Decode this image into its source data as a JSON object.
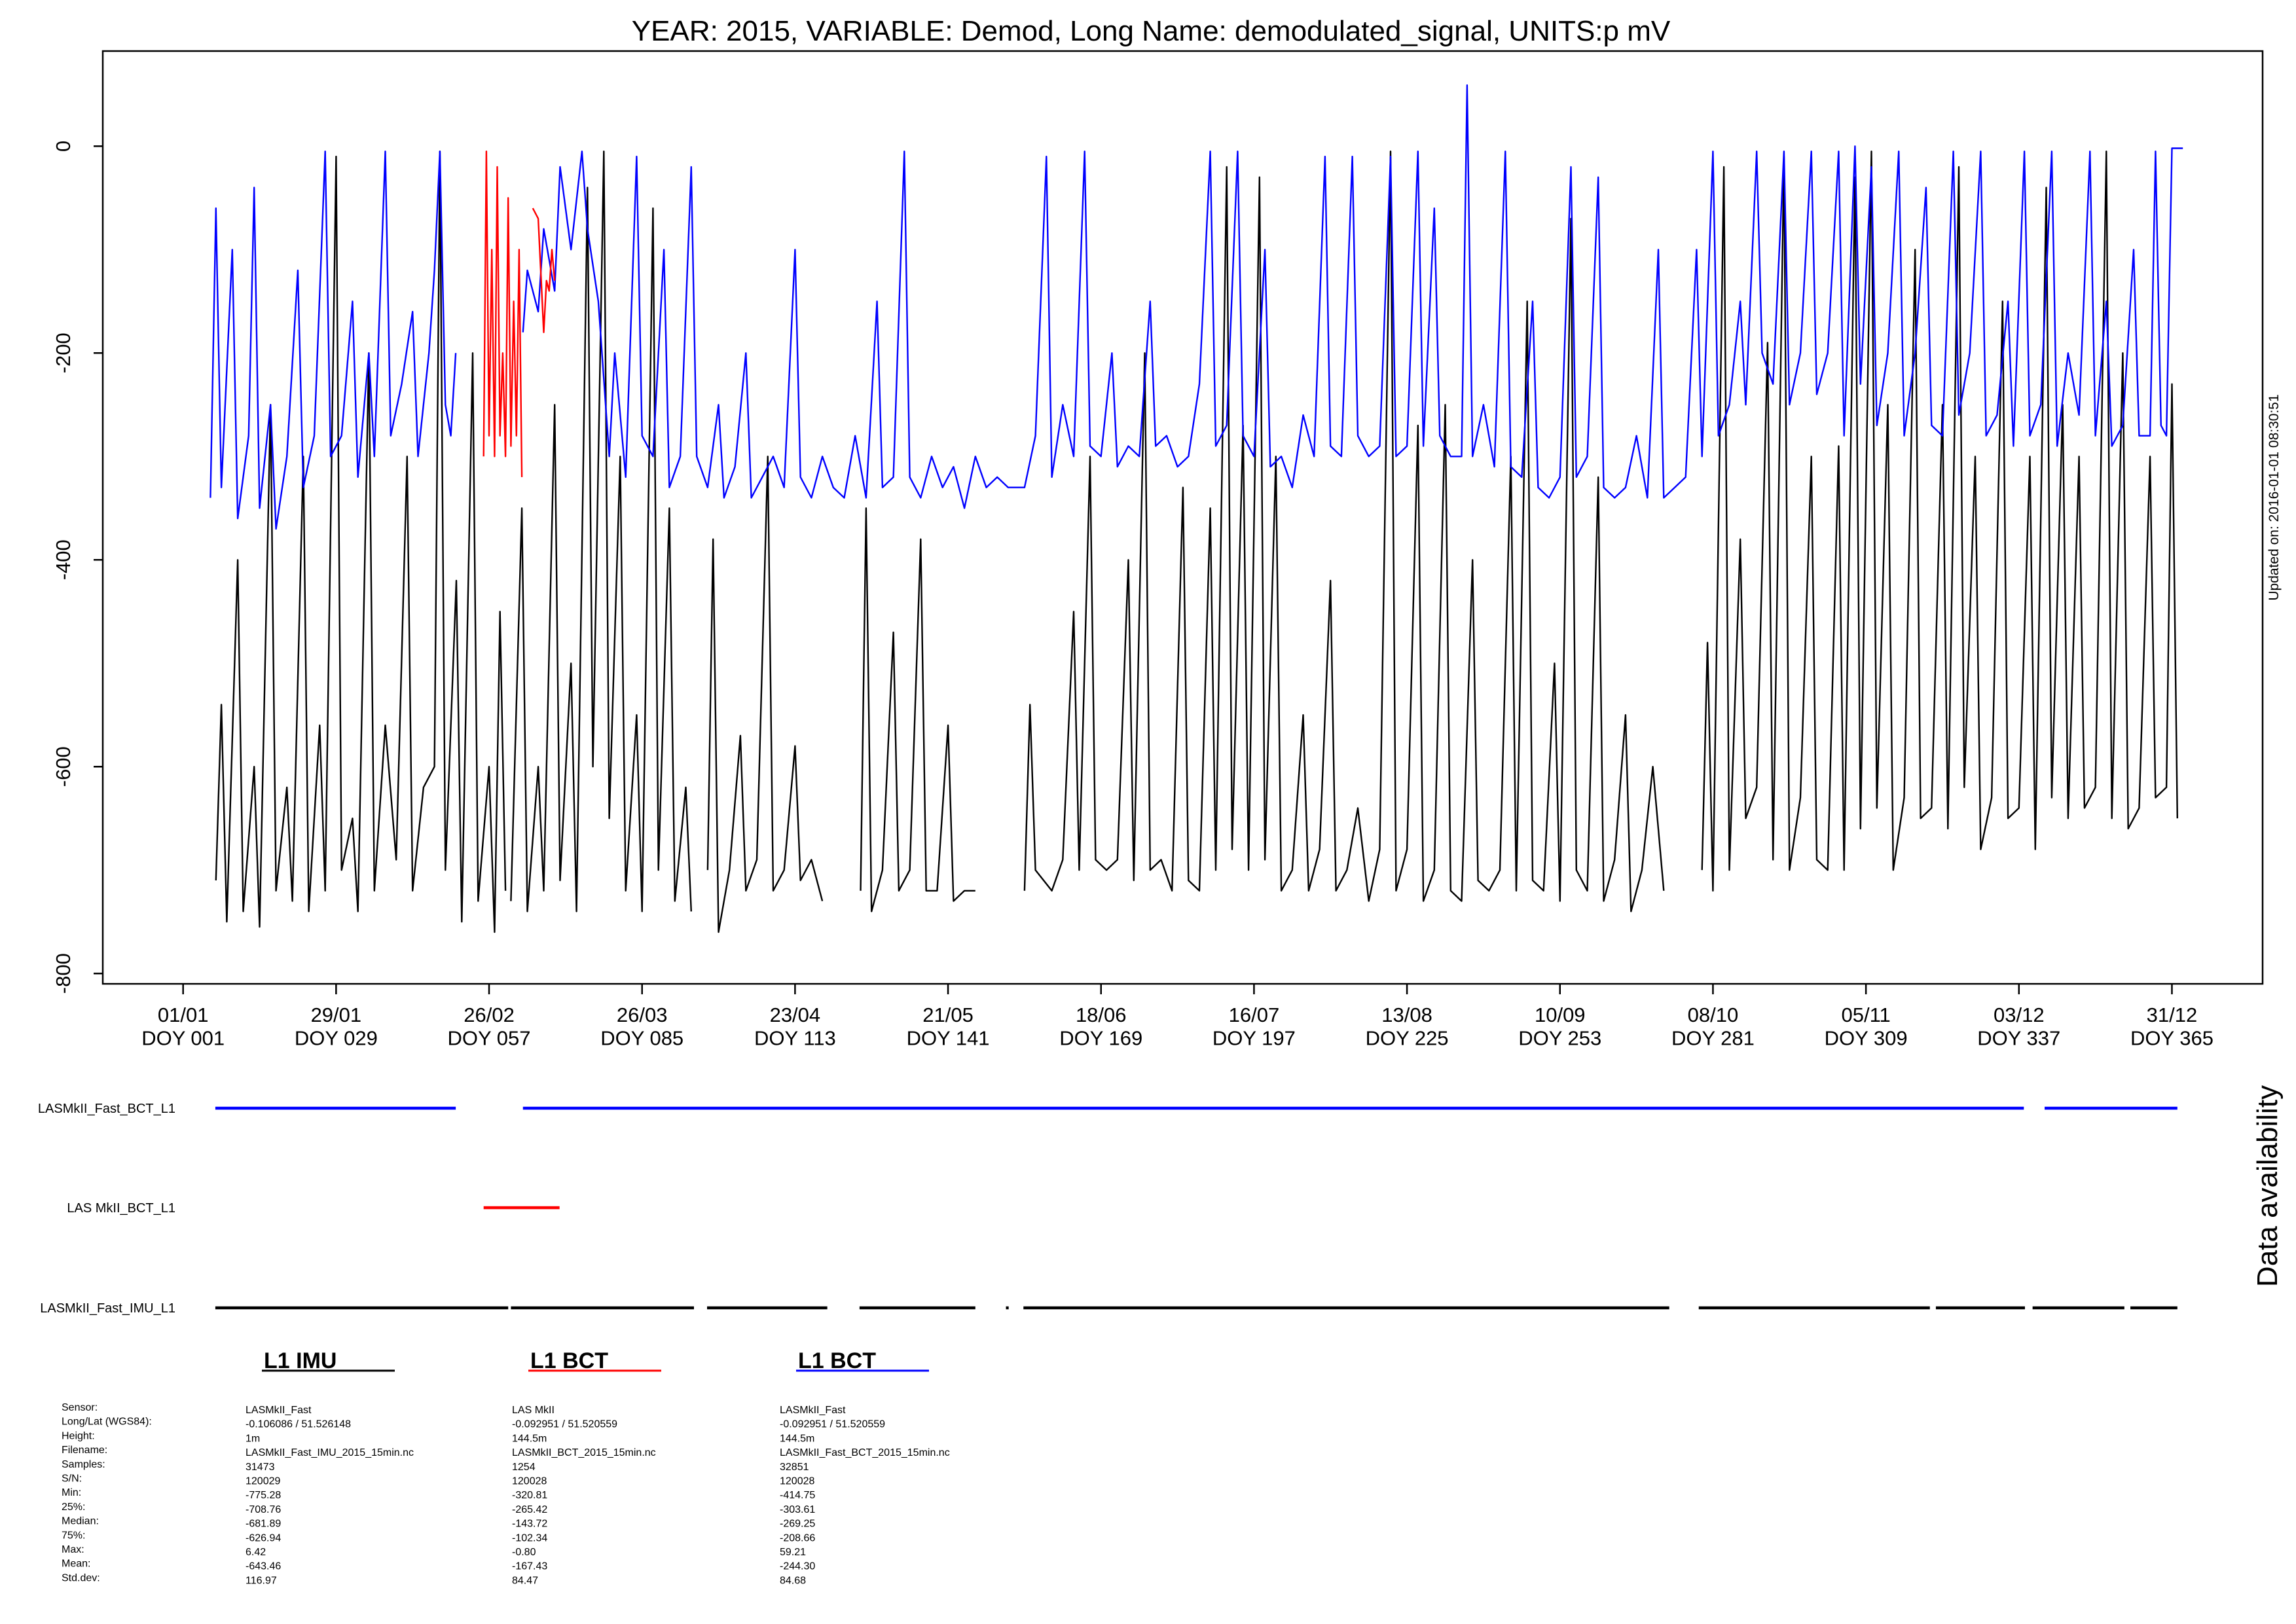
{
  "chart_data": {
    "type": "line",
    "title": "YEAR: 2015, VARIABLE: Demod, Long Name: demodulated_signal, UNITS:p mV",
    "annotation": "Updated on: 2016-01-01 08:30:51",
    "xlim": [
      -13.7,
      381.6
    ],
    "ylim": [
      -810,
      92
    ],
    "yticks": [
      0,
      -200,
      -400,
      -600,
      -800
    ],
    "xticks": [
      {
        "value": 1,
        "label": "01/01\nDOY 001"
      },
      {
        "value": 29,
        "label": "29/01\nDOY 029"
      },
      {
        "value": 57,
        "label": "26/02\nDOY 057"
      },
      {
        "value": 85,
        "label": "26/03\nDOY 085"
      },
      {
        "value": 113,
        "label": "23/04\nDOY 113"
      },
      {
        "value": 141,
        "label": "21/05\nDOY 141"
      },
      {
        "value": 169,
        "label": "18/06\nDOY 169"
      },
      {
        "value": 197,
        "label": "16/07\nDOY 197"
      },
      {
        "value": 225,
        "label": "13/08\nDOY 225"
      },
      {
        "value": 253,
        "label": "10/09\nDOY 253"
      },
      {
        "value": 281,
        "label": "08/10\nDOY 281"
      },
      {
        "value": 309,
        "label": "05/11\nDOY 309"
      },
      {
        "value": 337,
        "label": "03/12\nDOY 337"
      },
      {
        "value": 365,
        "label": "31/12\nDOY 365"
      }
    ],
    "series": [
      {
        "name": "L1 IMU",
        "color": "#000000",
        "x": [
          7,
          8,
          9,
          11,
          12,
          14,
          15,
          17,
          18,
          20,
          21,
          23,
          24,
          26,
          27,
          29,
          30,
          32,
          33,
          35,
          36,
          38,
          40,
          42,
          43,
          45,
          47,
          48,
          49,
          51,
          52,
          54,
          55,
          57,
          58,
          59,
          60,
          60.7,
          61,
          63,
          64,
          66,
          67,
          69,
          70,
          72,
          73,
          75,
          76,
          78,
          79,
          81,
          82,
          84,
          85,
          87,
          88,
          90,
          91,
          93,
          94,
          95.5,
          97,
          98,
          99,
          101,
          103,
          104,
          106,
          108,
          109,
          111,
          113,
          114,
          116,
          118,
          121,
          125,
          126,
          127,
          129,
          131,
          132,
          134,
          136,
          137,
          139,
          141,
          142,
          144,
          146,
          150,
          155,
          156,
          157,
          160,
          162,
          164,
          165,
          167,
          168,
          170,
          172,
          174,
          175,
          177,
          178,
          180,
          182,
          184,
          185,
          187,
          189,
          190,
          192,
          193,
          195,
          196,
          198,
          199,
          201,
          202,
          204,
          206,
          207,
          209,
          211,
          212,
          214,
          216,
          218,
          220,
          222,
          223,
          225,
          227,
          228,
          230,
          232,
          233,
          235,
          237,
          238,
          240,
          242,
          244,
          245,
          247,
          248,
          250,
          252,
          253,
          255,
          256,
          258,
          260,
          261,
          263,
          265,
          266,
          268,
          270,
          272,
          275,
          279,
          280,
          281,
          283,
          284,
          286,
          287,
          289,
          291,
          292,
          294,
          295,
          297,
          299,
          300,
          302,
          304,
          305,
          307,
          308,
          310,
          311,
          313,
          314,
          316,
          318,
          319,
          321,
          323,
          324,
          326,
          327,
          329,
          330,
          332,
          334,
          335,
          337,
          339,
          340,
          342,
          343,
          345,
          346,
          348,
          349,
          351,
          353,
          354,
          356,
          357,
          359,
          361,
          362,
          364,
          365,
          366
        ],
        "values": [
          -710,
          -540,
          -750,
          -400,
          -740,
          -600,
          -755,
          -250,
          -720,
          -620,
          -730,
          -300,
          -740,
          -560,
          -720,
          -10,
          -700,
          -650,
          -740,
          -200,
          -720,
          -560,
          -690,
          -300,
          -720,
          -620,
          -600,
          -5,
          -700,
          -420,
          -750,
          -200,
          -730,
          -600,
          -760,
          -450,
          -720,
          null,
          -730,
          -350,
          -740,
          -600,
          -720,
          -250,
          -710,
          -500,
          -740,
          -40,
          -600,
          -5,
          -650,
          -300,
          -720,
          -550,
          -740,
          -60,
          -700,
          -350,
          -730,
          -620,
          -740,
          null,
          -700,
          -380,
          -760,
          -700,
          -570,
          -720,
          -690,
          -300,
          -720,
          -700,
          -580,
          -710,
          -690,
          -730,
          null,
          -720,
          -350,
          -740,
          -700,
          -470,
          -720,
          -700,
          -380,
          -720,
          -720,
          -560,
          -730,
          -720,
          -720,
          null,
          -720,
          -540,
          -700,
          -720,
          -690,
          -450,
          -700,
          -300,
          -690,
          -700,
          -690,
          -400,
          -710,
          -200,
          -700,
          -690,
          -720,
          -330,
          -710,
          -720,
          -350,
          -700,
          -20,
          -680,
          -270,
          -700,
          -30,
          -690,
          -300,
          -720,
          -700,
          -550,
          -720,
          -680,
          -420,
          -720,
          -700,
          -640,
          -730,
          -680,
          -5,
          -720,
          -680,
          -270,
          -730,
          -700,
          -250,
          -720,
          -730,
          -400,
          -710,
          -720,
          -700,
          -300,
          -720,
          -150,
          -710,
          -720,
          -500,
          -730,
          -70,
          -700,
          -720,
          -320,
          -730,
          -690,
          -550,
          -740,
          -700,
          -600,
          -720,
          null,
          -700,
          -480,
          -720,
          -20,
          -700,
          -380,
          -650,
          -620,
          -190,
          -690,
          -10,
          -700,
          -630,
          -300,
          -690,
          -700,
          -290,
          -700,
          -30,
          -660,
          -5,
          -640,
          -250,
          -700,
          -630,
          -100,
          -650,
          -640,
          -250,
          -660,
          -20,
          -620,
          -300,
          -680,
          -630,
          -150,
          -650,
          -640,
          -300,
          -680,
          -40,
          -630,
          -250,
          -650,
          -300,
          -640,
          -620,
          -5,
          -650,
          -200,
          -660,
          -640,
          -300,
          -630,
          -620,
          -230,
          -650
        ]
      },
      {
        "name": "L1 BCT",
        "color": "#ff0000",
        "x": [
          56,
          56.5,
          57,
          57.5,
          58,
          58.5,
          59,
          59.5,
          60,
          60.5,
          61,
          61.5,
          62,
          62.5,
          63,
          64,
          65,
          66,
          67,
          67.5,
          68,
          68.5,
          69
        ],
        "values": [
          -300,
          -5,
          -280,
          -100,
          -300,
          -20,
          -280,
          -200,
          -300,
          -50,
          -290,
          -150,
          -280,
          -100,
          -320,
          null,
          -60,
          -70,
          -180,
          -130,
          -140,
          -100,
          -130
        ]
      },
      {
        "name": "L1 BCT",
        "color": "#0000ff",
        "x": [
          6,
          7,
          8,
          10,
          11,
          13,
          14,
          15,
          17,
          18,
          20,
          22,
          23,
          25,
          27,
          28,
          30,
          32,
          33,
          35,
          36,
          38,
          39,
          41,
          43,
          44,
          46,
          47,
          48,
          49,
          50,
          50.9,
          55,
          63.2,
          64,
          66,
          67,
          69,
          70,
          72,
          74,
          75,
          77,
          79,
          80,
          82,
          84,
          85,
          87,
          89,
          90,
          92,
          94,
          95,
          97,
          99,
          100,
          102,
          104,
          105,
          107,
          109,
          111,
          113,
          114,
          116,
          118,
          120,
          122,
          124,
          126,
          128,
          129,
          131,
          133,
          134,
          136,
          138,
          140,
          142,
          144,
          146,
          148,
          150,
          152,
          155,
          157,
          159,
          160,
          162,
          164,
          166,
          167,
          169,
          171,
          172,
          174,
          176,
          178,
          179,
          181,
          183,
          185,
          187,
          189,
          190,
          192,
          194,
          195,
          197,
          199,
          200,
          202,
          204,
          206,
          208,
          210,
          211,
          213,
          215,
          216,
          218,
          220,
          222,
          223,
          225,
          227,
          228,
          230,
          231,
          233,
          235,
          236,
          237,
          239,
          241,
          243,
          244,
          246,
          248,
          249,
          251,
          253,
          255,
          256,
          258,
          260,
          261,
          263,
          265,
          267,
          269,
          271,
          272,
          274,
          276,
          278,
          279,
          281,
          282,
          284,
          286,
          287,
          289,
          290,
          292,
          294,
          295,
          297,
          299,
          300,
          302,
          304,
          305,
          307,
          308,
          310,
          311,
          313,
          315,
          316,
          318,
          320,
          321,
          323,
          325,
          326,
          328,
          330,
          331,
          333,
          335,
          336,
          338,
          339,
          341,
          343,
          344,
          346,
          348,
          350,
          351,
          353,
          354,
          356,
          358,
          359,
          361,
          362,
          363,
          364,
          365,
          367
        ],
        "values": [
          -340,
          -60,
          -330,
          -100,
          -360,
          -280,
          -40,
          -350,
          -250,
          -370,
          -300,
          -120,
          -330,
          -280,
          -5,
          -300,
          -280,
          -150,
          -320,
          -200,
          -300,
          -5,
          -280,
          -230,
          -160,
          -300,
          -200,
          -120,
          -5,
          -250,
          -280,
          -200,
          null,
          -180,
          -120,
          -160,
          -80,
          -140,
          -20,
          -100,
          -5,
          -80,
          -150,
          -300,
          -200,
          -320,
          -10,
          -280,
          -300,
          -100,
          -330,
          -300,
          -20,
          -300,
          -330,
          -250,
          -340,
          -310,
          -200,
          -340,
          -320,
          -300,
          -330,
          -100,
          -320,
          -340,
          -300,
          -330,
          -340,
          -280,
          -340,
          -150,
          -330,
          -320,
          -5,
          -320,
          -340,
          -300,
          -330,
          -310,
          -350,
          -300,
          -330,
          -320,
          -330,
          -330,
          -280,
          -10,
          -320,
          -250,
          -300,
          -5,
          -290,
          -300,
          -200,
          -310,
          -290,
          -300,
          -150,
          -290,
          -280,
          -310,
          -300,
          -230,
          -5,
          -290,
          -270,
          -5,
          -280,
          -300,
          -100,
          -310,
          -300,
          -330,
          -260,
          -300,
          -10,
          -290,
          -300,
          -10,
          -280,
          -300,
          -290,
          -10,
          -300,
          -290,
          -5,
          -290,
          -60,
          -280,
          -300,
          -300,
          59,
          -300,
          -250,
          -310,
          -5,
          -310,
          -320,
          -150,
          -330,
          -340,
          -320,
          -20,
          -320,
          -300,
          -30,
          -330,
          -340,
          -330,
          -280,
          -340,
          -100,
          -340,
          -330,
          -320,
          -100,
          -300,
          -5,
          -280,
          -250,
          -150,
          -250,
          -5,
          -200,
          -230,
          -5,
          -250,
          -200,
          -5,
          -240,
          -200,
          -5,
          -280,
          0,
          -230,
          -20,
          -270,
          -200,
          -5,
          -280,
          -200,
          -40,
          -270,
          -280,
          -5,
          -260,
          -200,
          -5,
          -280,
          -260,
          -150,
          -290,
          -5,
          -280,
          -250,
          -5,
          -290,
          -200,
          -260,
          -5,
          -280,
          -150,
          -290,
          -270,
          -100,
          -280,
          -280,
          -5,
          -270,
          -280,
          -2,
          -2
        ]
      }
    ],
    "availability": {
      "title": "Data availability",
      "rows": [
        {
          "label": "LASMkII_Fast_BCT_L1",
          "color": "#0000ff",
          "segments": [
            [
              6.9,
              50.9
            ],
            [
              63.2,
              337.9
            ],
            [
              341.7,
              366
            ]
          ]
        },
        {
          "label": "LAS MkII_BCT_L1",
          "color": "#ff0000",
          "segments": [
            [
              56,
              69.9
            ]
          ]
        },
        {
          "label": "LASMkII_Fast_IMU_L1",
          "color": "#000000",
          "segments": [
            [
              6.9,
              60.5
            ],
            [
              61,
              94.5
            ],
            [
              96.9,
              118.9
            ],
            [
              124.8,
              146
            ],
            [
              151.6,
              152.1
            ],
            [
              154.8,
              273
            ],
            [
              278.4,
              320.7
            ],
            [
              321.8,
              338.1
            ],
            [
              339.5,
              356.3
            ],
            [
              357.4,
              366
            ]
          ]
        }
      ]
    },
    "stats": {
      "labels": [
        "Sensor:",
        "Long/Lat (WGS84):",
        "Height:",
        "Filename:",
        "Samples:",
        "S/N:",
        "Min:",
        "25%:",
        "Median:",
        "75%:",
        "Max:",
        "Mean:",
        "Std.dev:"
      ],
      "columns": [
        [
          "LASMkII_Fast",
          "-0.106086 / 51.526148",
          "1m",
          "LASMkII_Fast_IMU_2015_15min.nc",
          "31473",
          "120029",
          "-775.28",
          "-708.76",
          "-681.89",
          "-626.94",
          "6.42",
          "-643.46",
          "116.97"
        ],
        [
          "LAS MkII",
          "-0.092951 / 51.520559",
          "144.5m",
          "LASMkII_BCT_2015_15min.nc",
          "1254",
          "120028",
          "-320.81",
          "-265.42",
          "-143.72",
          "-102.34",
          "-0.80",
          "-167.43",
          "84.47"
        ],
        [
          "LASMkII_Fast",
          "-0.092951 / 51.520559",
          "144.5m",
          "LASMkII_Fast_BCT_2015_15min.nc",
          "32851",
          "120028",
          "-414.75",
          "-303.61",
          "-269.25",
          "-208.66",
          "59.21",
          "-244.30",
          "84.68"
        ]
      ]
    }
  }
}
